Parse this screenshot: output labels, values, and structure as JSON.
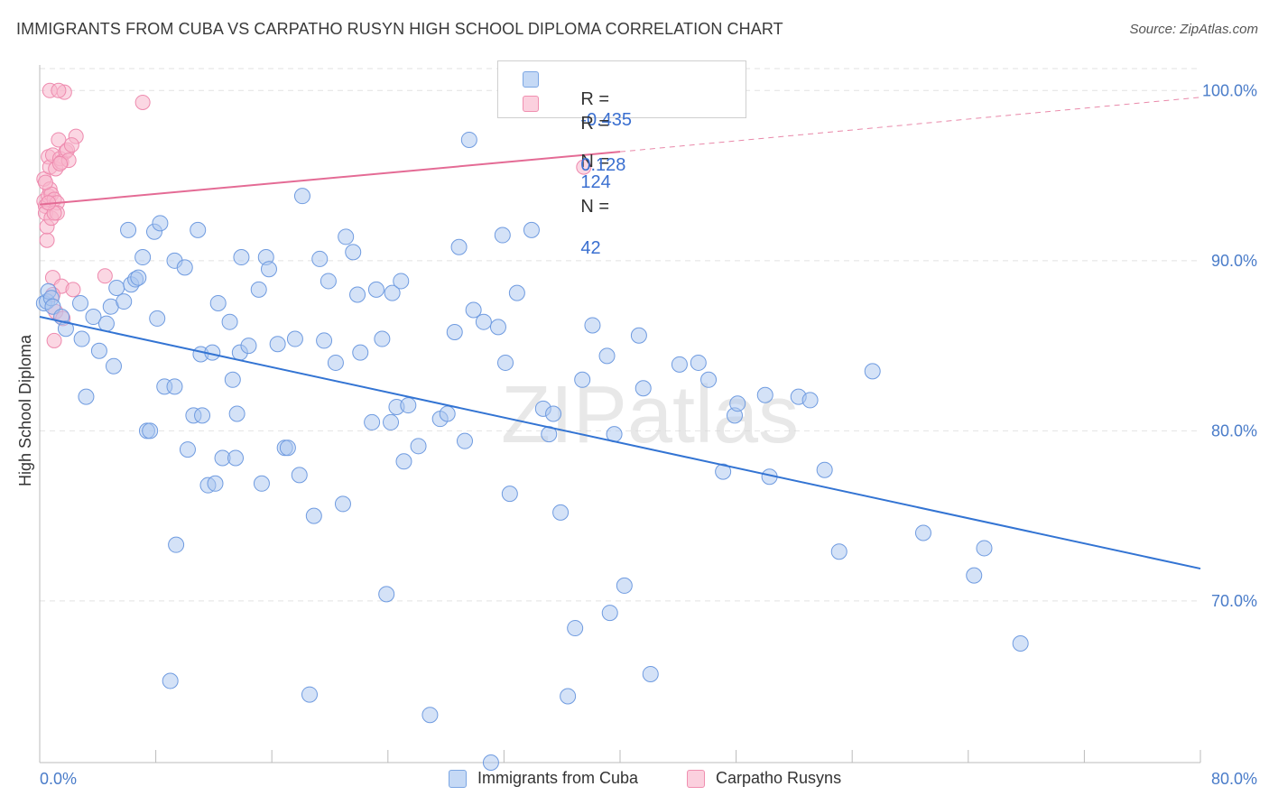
{
  "title": "IMMIGRANTS FROM CUBA VS CARPATHO RUSYN HIGH SCHOOL DIPLOMA CORRELATION CHART",
  "source": "Source: ZipAtlas.com",
  "watermark": "ZIPatlas",
  "legend": {
    "rows": [
      {
        "r_label": "R =",
        "r_value": "-0.435",
        "n_label": "N =",
        "n_value": "124",
        "color": "#7ba6e3"
      },
      {
        "r_label": "R =",
        "r_value": "0.128",
        "n_label": "N =",
        "n_value": "42",
        "color": "#f08fb0"
      }
    ]
  },
  "bottom_legend": {
    "series1": "Immigrants from Cuba",
    "series2": "Carpatho Rusyns"
  },
  "colors": {
    "blue_fill": "#a9c6f0",
    "blue_stroke": "#6f9be0",
    "blue_line": "#3374d3",
    "pink_fill": "#f7b7cc",
    "pink_stroke": "#ee8aae",
    "pink_line": "#e46b95",
    "tick_label": "#4a7cc9"
  },
  "chart_data": {
    "type": "scatter",
    "title": "IMMIGRANTS FROM CUBA VS CARPATHO RUSYN HIGH SCHOOL DIPLOMA CORRELATION CHART",
    "xlabel": "",
    "ylabel": "High School Diploma",
    "xlim": [
      0,
      80
    ],
    "ylim": [
      60.5,
      101.5
    ],
    "x_tick_labels": [
      "0.0%",
      "80.0%"
    ],
    "y_ticks": [
      70,
      80,
      90,
      100
    ],
    "y_tick_labels": [
      "70.0%",
      "80.0%",
      "90.0%",
      "100.0%"
    ],
    "grid": true,
    "series": [
      {
        "name": "Immigrants from Cuba",
        "points": [
          [
            0.3,
            87.5
          ],
          [
            0.5,
            87.6
          ],
          [
            0.6,
            88.2
          ],
          [
            0.8,
            87.8
          ],
          [
            0.9,
            87.3
          ],
          [
            1.5,
            86.7
          ],
          [
            1.8,
            86.0
          ],
          [
            2.8,
            87.5
          ],
          [
            2.9,
            85.4
          ],
          [
            3.2,
            82.0
          ],
          [
            3.7,
            86.7
          ],
          [
            4.1,
            84.7
          ],
          [
            4.6,
            86.3
          ],
          [
            4.9,
            87.3
          ],
          [
            5.1,
            83.8
          ],
          [
            5.3,
            88.4
          ],
          [
            5.8,
            87.6
          ],
          [
            6.1,
            91.8
          ],
          [
            6.3,
            88.6
          ],
          [
            6.6,
            88.9
          ],
          [
            6.8,
            89.0
          ],
          [
            7.1,
            90.2
          ],
          [
            7.4,
            80.0
          ],
          [
            7.9,
            91.7
          ],
          [
            8.1,
            86.6
          ],
          [
            8.3,
            92.2
          ],
          [
            8.6,
            82.6
          ],
          [
            9.4,
            73.3
          ],
          [
            9.0,
            65.3
          ],
          [
            9.3,
            90.0
          ],
          [
            10.0,
            89.6
          ],
          [
            10.2,
            78.9
          ],
          [
            10.6,
            80.9
          ],
          [
            10.9,
            91.8
          ],
          [
            11.1,
            84.5
          ],
          [
            11.6,
            76.8
          ],
          [
            11.9,
            84.6
          ],
          [
            12.1,
            76.9
          ],
          [
            12.3,
            87.5
          ],
          [
            12.6,
            78.4
          ],
          [
            13.1,
            86.4
          ],
          [
            13.3,
            83.0
          ],
          [
            13.6,
            81.0
          ],
          [
            13.8,
            84.6
          ],
          [
            13.9,
            90.2
          ],
          [
            14.4,
            85.0
          ],
          [
            15.1,
            88.3
          ],
          [
            15.3,
            76.9
          ],
          [
            15.6,
            90.2
          ],
          [
            15.8,
            89.5
          ],
          [
            16.4,
            85.1
          ],
          [
            16.9,
            79.0
          ],
          [
            17.1,
            79.0
          ],
          [
            17.6,
            85.4
          ],
          [
            17.9,
            77.4
          ],
          [
            18.1,
            93.8
          ],
          [
            18.6,
            64.5
          ],
          [
            18.9,
            75.0
          ],
          [
            19.3,
            90.1
          ],
          [
            19.6,
            85.3
          ],
          [
            19.9,
            88.8
          ],
          [
            20.4,
            84.0
          ],
          [
            20.9,
            75.7
          ],
          [
            21.1,
            91.4
          ],
          [
            21.6,
            90.5
          ],
          [
            21.9,
            88.0
          ],
          [
            22.1,
            84.6
          ],
          [
            22.9,
            80.5
          ],
          [
            23.2,
            88.3
          ],
          [
            23.6,
            85.4
          ],
          [
            23.9,
            70.4
          ],
          [
            24.3,
            88.1
          ],
          [
            24.6,
            81.4
          ],
          [
            24.9,
            88.8
          ],
          [
            25.1,
            78.2
          ],
          [
            25.4,
            81.5
          ],
          [
            26.1,
            79.1
          ],
          [
            26.9,
            63.3
          ],
          [
            27.6,
            80.7
          ],
          [
            28.1,
            81.0
          ],
          [
            28.6,
            85.8
          ],
          [
            28.9,
            90.8
          ],
          [
            29.3,
            79.4
          ],
          [
            29.6,
            97.1
          ],
          [
            29.9,
            87.1
          ],
          [
            30.6,
            86.4
          ],
          [
            31.1,
            60.5
          ],
          [
            31.6,
            86.1
          ],
          [
            31.9,
            91.5
          ],
          [
            32.1,
            84.0
          ],
          [
            32.4,
            76.3
          ],
          [
            32.9,
            88.1
          ],
          [
            33.9,
            91.8
          ],
          [
            34.7,
            81.3
          ],
          [
            35.1,
            79.8
          ],
          [
            35.4,
            81.0
          ],
          [
            35.9,
            75.2
          ],
          [
            36.4,
            64.4
          ],
          [
            36.9,
            68.4
          ],
          [
            37.4,
            83.0
          ],
          [
            38.1,
            86.2
          ],
          [
            39.1,
            84.4
          ],
          [
            39.3,
            69.3
          ],
          [
            39.6,
            79.8
          ],
          [
            40.3,
            70.9
          ],
          [
            41.3,
            85.6
          ],
          [
            41.6,
            82.5
          ],
          [
            42.1,
            65.7
          ],
          [
            44.1,
            83.9
          ],
          [
            45.4,
            84.0
          ],
          [
            46.1,
            83.0
          ],
          [
            47.1,
            77.6
          ],
          [
            47.9,
            80.9
          ],
          [
            48.1,
            81.6
          ],
          [
            50.0,
            82.1
          ],
          [
            50.3,
            77.3
          ],
          [
            52.3,
            82.0
          ],
          [
            53.1,
            81.8
          ],
          [
            54.1,
            77.7
          ],
          [
            55.1,
            72.9
          ],
          [
            57.4,
            83.5
          ],
          [
            60.9,
            74.0
          ],
          [
            64.4,
            71.5
          ],
          [
            65.1,
            73.1
          ],
          [
            67.6,
            67.5
          ],
          [
            7.6,
            80.0
          ],
          [
            9.3,
            82.6
          ],
          [
            11.2,
            80.9
          ],
          [
            13.5,
            78.4
          ],
          [
            24.2,
            80.5
          ]
        ],
        "trend": {
          "x0": 0,
          "y0": 86.7,
          "x1": 80,
          "y1": 71.9
        }
      },
      {
        "name": "Carpatho Rusyns",
        "points": [
          [
            0.3,
            94.8
          ],
          [
            0.3,
            93.5
          ],
          [
            0.4,
            93.2
          ],
          [
            0.4,
            92.8
          ],
          [
            0.5,
            91.2
          ],
          [
            0.5,
            92.0
          ],
          [
            0.6,
            96.1
          ],
          [
            0.6,
            93.8
          ],
          [
            0.7,
            95.5
          ],
          [
            0.7,
            94.2
          ],
          [
            0.8,
            93.9
          ],
          [
            0.8,
            92.5
          ],
          [
            0.9,
            96.2
          ],
          [
            0.9,
            89.0
          ],
          [
            1.0,
            93.6
          ],
          [
            1.0,
            85.3
          ],
          [
            1.1,
            95.4
          ],
          [
            1.1,
            87.0
          ],
          [
            1.2,
            93.4
          ],
          [
            1.2,
            92.8
          ],
          [
            1.3,
            97.1
          ],
          [
            1.4,
            96.0
          ],
          [
            1.5,
            95.8
          ],
          [
            1.5,
            88.5
          ],
          [
            1.6,
            86.6
          ],
          [
            1.7,
            99.9
          ],
          [
            1.8,
            96.4
          ],
          [
            1.9,
            96.5
          ],
          [
            2.0,
            95.9
          ],
          [
            2.3,
            88.3
          ],
          [
            2.5,
            97.3
          ],
          [
            4.5,
            89.1
          ],
          [
            7.1,
            99.3
          ],
          [
            37.5,
            95.5
          ],
          [
            0.7,
            100.0
          ],
          [
            1.3,
            100.0
          ],
          [
            0.4,
            94.6
          ],
          [
            1.0,
            92.8
          ],
          [
            0.6,
            93.4
          ],
          [
            1.4,
            95.7
          ],
          [
            2.2,
            96.8
          ],
          [
            0.9,
            88.0
          ]
        ],
        "trend": {
          "x0": 0,
          "y0": 93.3,
          "x1": 40,
          "y1": 96.4,
          "dash_x1": 80,
          "dash_y1": 99.6
        }
      }
    ]
  }
}
